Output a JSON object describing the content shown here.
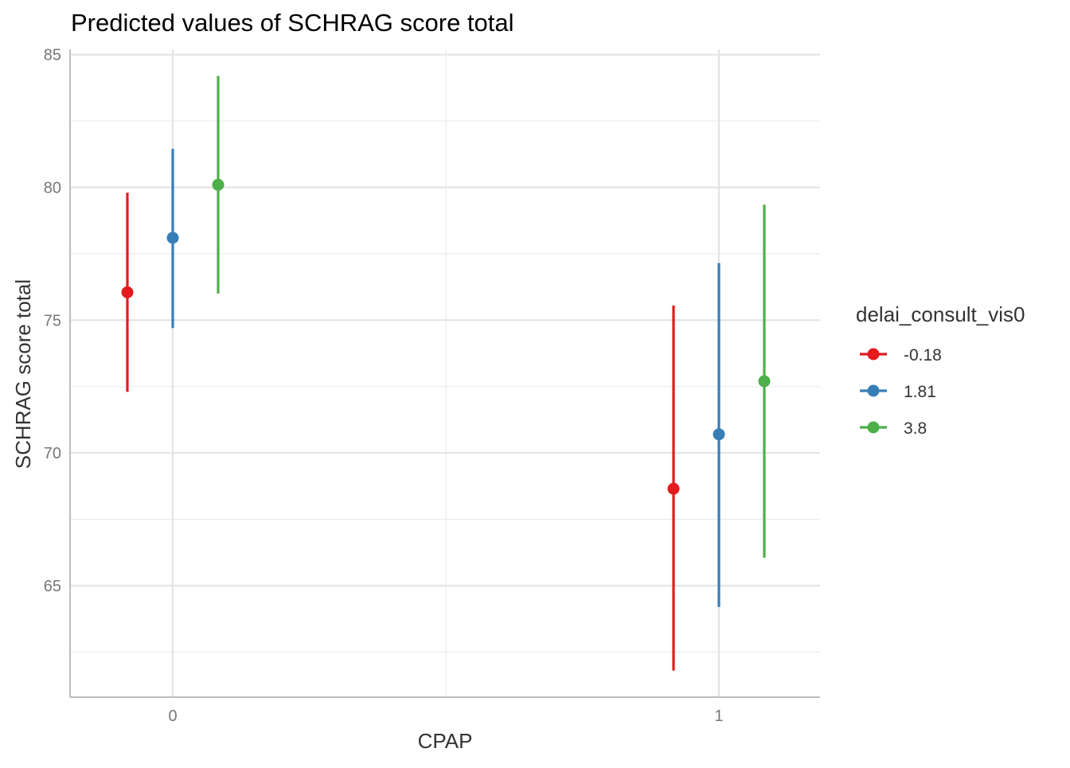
{
  "chart_data": {
    "type": "scatter",
    "title": "Predicted values of SCHRAG score total",
    "xlabel": "CPAP",
    "ylabel": "SCHRAG score total",
    "categories": [
      "0",
      "1"
    ],
    "ylim": [
      60.8,
      85.2
    ],
    "yticks": [
      65,
      70,
      75,
      80,
      85
    ],
    "grid": true,
    "legend": {
      "title": "delai_consult_vis0",
      "position": "right"
    },
    "series": [
      {
        "name": "-0.18",
        "color": "#E41A1C",
        "values": [
          76.05,
          68.65
        ],
        "lower": [
          72.3,
          61.8
        ],
        "upper": [
          79.8,
          75.55
        ]
      },
      {
        "name": "1.81",
        "color": "#377EB8",
        "values": [
          78.1,
          70.7
        ],
        "lower": [
          74.7,
          64.2
        ],
        "upper": [
          81.45,
          77.15
        ]
      },
      {
        "name": "3.8",
        "color": "#4DAF4A",
        "values": [
          80.1,
          72.7
        ],
        "lower": [
          76.0,
          66.05
        ],
        "upper": [
          84.2,
          79.35
        ]
      }
    ]
  }
}
